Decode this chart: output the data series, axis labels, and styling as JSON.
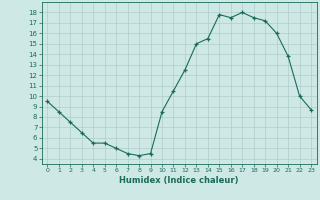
{
  "x": [
    0,
    1,
    2,
    3,
    4,
    5,
    6,
    7,
    8,
    9,
    10,
    11,
    12,
    13,
    14,
    15,
    16,
    17,
    18,
    19,
    20,
    21,
    22,
    23
  ],
  "y": [
    9.5,
    8.5,
    7.5,
    6.5,
    5.5,
    5.5,
    5.0,
    4.5,
    4.3,
    4.5,
    8.5,
    10.5,
    12.5,
    15.0,
    15.5,
    17.8,
    17.5,
    18.0,
    17.5,
    17.2,
    16.0,
    13.8,
    10.0,
    8.7
  ],
  "xlabel": "Humidex (Indice chaleur)",
  "ylim": [
    3.5,
    19
  ],
  "xlim": [
    -0.5,
    23.5
  ],
  "yticks": [
    4,
    5,
    6,
    7,
    8,
    9,
    10,
    11,
    12,
    13,
    14,
    15,
    16,
    17,
    18
  ],
  "xticks": [
    0,
    1,
    2,
    3,
    4,
    5,
    6,
    7,
    8,
    9,
    10,
    11,
    12,
    13,
    14,
    15,
    16,
    17,
    18,
    19,
    20,
    21,
    22,
    23
  ],
  "line_color": "#1a6b5a",
  "marker_color": "#1a6b5a",
  "bg_color": "#cde8e5",
  "grid_color": "#b0cccc",
  "text_color": "#1a6b5a"
}
